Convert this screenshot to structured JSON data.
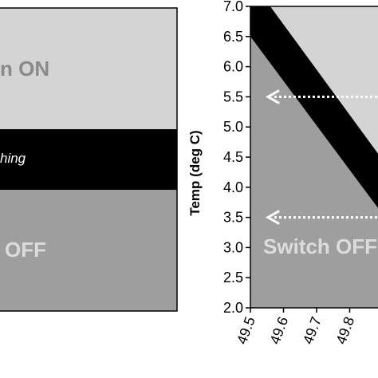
{
  "colors": {
    "on_region": "#d4d4d4",
    "band": "#000000",
    "off_region": "#9e9e9e",
    "on_text": "#8a8a8a",
    "off_text": "#dcdcdc",
    "arrow": "#ffffff"
  },
  "left_panel": {
    "on_label": "n ON",
    "band_label": "hing",
    "off_label": "OFF"
  },
  "chart_data": {
    "type": "area",
    "title": "",
    "ylabel": "Temp (deg C)",
    "xlabel": "",
    "xlim": [
      49.5,
      49.9
    ],
    "ylim": [
      2.0,
      7.0
    ],
    "x_ticks": [
      "49.5",
      "49.6",
      "49.7",
      "49.8"
    ],
    "y_ticks": [
      "2.0",
      "2.5",
      "3.0",
      "3.5",
      "4.0",
      "4.5",
      "5.0",
      "5.5",
      "6.0",
      "6.5",
      "7.0"
    ],
    "grid": false,
    "regions": [
      {
        "name": "Switch ON",
        "label": "",
        "upper_line": {
          "x": [
            49.5,
            49.9
          ],
          "y": [
            7.45,
            4.45
          ]
        }
      },
      {
        "name": "switching band",
        "label": ""
      },
      {
        "name": "Switch OFF",
        "label": "Switch OFF",
        "lower_line": {
          "x": [
            49.5,
            49.9
          ],
          "y": [
            6.5,
            3.55
          ]
        }
      }
    ],
    "annotations": [
      {
        "type": "dashed-arrow",
        "y": 5.5,
        "direction": "left"
      },
      {
        "type": "dashed-arrow",
        "y": 3.5,
        "direction": "left"
      }
    ]
  }
}
